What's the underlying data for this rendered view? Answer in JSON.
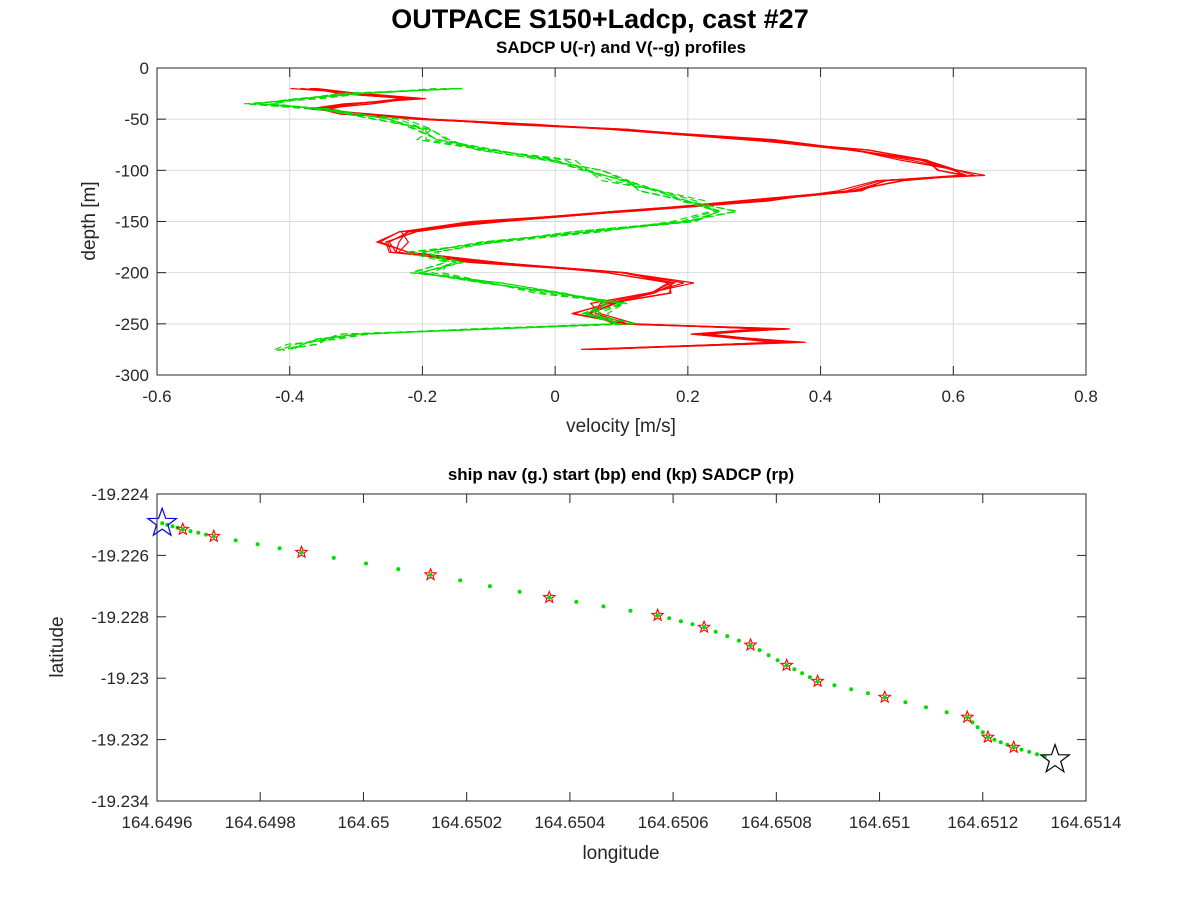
{
  "figure": {
    "title": "OUTPACE S150+Ladcp, cast #27"
  },
  "chart_data": [
    {
      "type": "line",
      "title": "SADCP U(-r) and V(--g) profiles",
      "xlabel": "velocity [m/s]",
      "ylabel": "depth [m]",
      "xlim": [
        -0.6,
        0.8
      ],
      "ylim": [
        -300,
        0
      ],
      "xticks": [
        "-0.6",
        "-0.4",
        "-0.2",
        "0",
        "0.2",
        "0.4",
        "0.6",
        "0.8"
      ],
      "yticks": [
        "0",
        "-50",
        "-100",
        "-150",
        "-200",
        "-250",
        "-300"
      ],
      "grid": true,
      "series": [
        {
          "style": "solid",
          "color": "#ff0000",
          "depth": [
            -20,
            -25,
            -30,
            -35,
            -40,
            -45,
            -50,
            -55,
            -60,
            -70,
            -80,
            -90,
            -100,
            -105,
            -110,
            -120,
            -130,
            -140,
            -150,
            -160,
            -170,
            -180,
            -190,
            -200,
            -210,
            -220,
            -230,
            -240,
            -250,
            -255,
            -260,
            -268,
            -275
          ],
          "values": [
            -0.37,
            -0.3,
            -0.22,
            -0.3,
            -0.35,
            -0.3,
            -0.2,
            -0.05,
            0.1,
            0.3,
            0.45,
            0.55,
            0.6,
            0.62,
            0.5,
            0.45,
            0.3,
            0.1,
            -0.1,
            -0.22,
            -0.25,
            -0.24,
            -0.1,
            0.1,
            0.18,
            0.15,
            0.08,
            0.05,
            0.1,
            0.33,
            0.22,
            0.35,
            0.05
          ]
        },
        {
          "style": "dashed",
          "color": "#00dd00",
          "depth": [
            -20,
            -25,
            -30,
            -35,
            -40,
            -50,
            -60,
            -70,
            -80,
            -90,
            -100,
            -110,
            -120,
            -130,
            -140,
            -150,
            -160,
            -170,
            -180,
            -190,
            -200,
            -210,
            -220,
            -230,
            -240,
            -250,
            -255,
            -260,
            -265,
            -270,
            -276
          ],
          "values": [
            -0.15,
            -0.3,
            -0.38,
            -0.45,
            -0.35,
            -0.25,
            -0.2,
            -0.18,
            -0.1,
            0.0,
            0.05,
            0.1,
            0.15,
            0.2,
            0.25,
            0.2,
            0.05,
            -0.1,
            -0.2,
            -0.15,
            -0.2,
            -0.1,
            0.0,
            0.1,
            0.05,
            0.1,
            -0.1,
            -0.3,
            -0.35,
            -0.38,
            -0.41
          ]
        }
      ]
    },
    {
      "type": "scatter",
      "title": "ship nav (g.) start (bp) end (kp) SADCP (rp)",
      "xlabel": "longitude",
      "ylabel": "latitude",
      "xlim": [
        164.6496,
        164.6514
      ],
      "ylim": [
        -19.234,
        -19.224
      ],
      "xticks": [
        "164.6496",
        "164.6498",
        "164.65",
        "164.6502",
        "164.6504",
        "164.6506",
        "164.6508",
        "164.651",
        "164.6512",
        "164.6514"
      ],
      "yticks": [
        "-19.224",
        "-19.226",
        "-19.228",
        "-19.23",
        "-19.232",
        "-19.234"
      ],
      "grid": false,
      "ship_nav": {
        "color": "#00dd00",
        "points": [
          [
            164.64965,
            -19.22515
          ],
          [
            164.64971,
            -19.22538
          ],
          [
            164.64988,
            -19.2259
          ],
          [
            164.65013,
            -19.22663
          ],
          [
            164.65036,
            -19.22737
          ],
          [
            164.65057,
            -19.22795
          ],
          [
            164.65066,
            -19.22834
          ],
          [
            164.65075,
            -19.22892
          ],
          [
            164.65082,
            -19.22958
          ],
          [
            164.65088,
            -19.2301
          ],
          [
            164.65101,
            -19.23062
          ],
          [
            164.65117,
            -19.23127
          ],
          [
            164.65121,
            -19.23192
          ],
          [
            164.65126,
            -19.23225
          ],
          [
            164.65132,
            -19.23255
          ]
        ]
      },
      "start": {
        "color": "#0000ff",
        "lon": 164.64961,
        "lat": -19.22495
      },
      "end": {
        "color": "#000000",
        "lon": 164.65134,
        "lat": -19.23265
      },
      "sadcp": {
        "color": "#ff0000",
        "points": [
          [
            164.64965,
            -19.22515
          ],
          [
            164.64971,
            -19.22538
          ],
          [
            164.64988,
            -19.2259
          ],
          [
            164.65013,
            -19.22663
          ],
          [
            164.65036,
            -19.22737
          ],
          [
            164.65057,
            -19.22795
          ],
          [
            164.65066,
            -19.22834
          ],
          [
            164.65075,
            -19.22892
          ],
          [
            164.65082,
            -19.22958
          ],
          [
            164.65088,
            -19.2301
          ],
          [
            164.65101,
            -19.23062
          ],
          [
            164.65117,
            -19.23127
          ],
          [
            164.65121,
            -19.23192
          ],
          [
            164.65126,
            -19.23225
          ]
        ]
      }
    }
  ]
}
